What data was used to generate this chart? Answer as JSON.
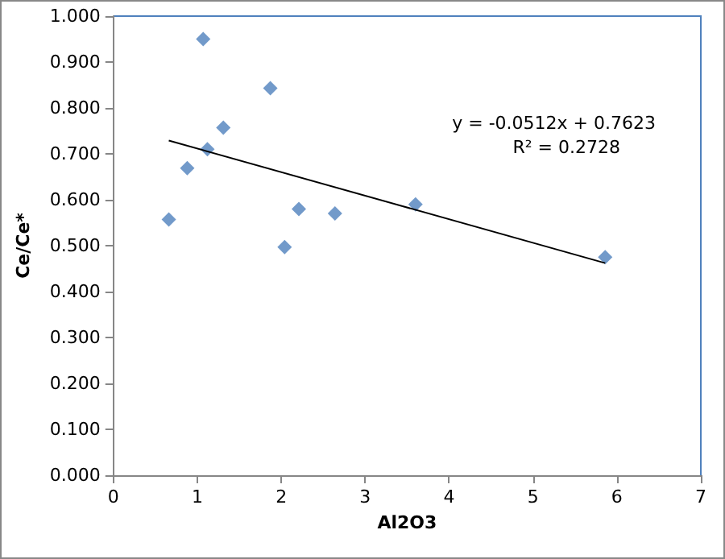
{
  "chart_data": {
    "type": "scatter",
    "xlabel": "Al2O3",
    "ylabel": "Ce/Ce*",
    "series": [
      {
        "color": "#4f81bd",
        "marker": "diamond",
        "x": [
          0.66,
          0.88,
          1.07,
          1.12,
          1.31,
          1.87,
          2.04,
          2.21,
          2.64,
          3.6,
          5.86
        ],
        "values": [
          0.557,
          0.669,
          0.95,
          0.71,
          0.757,
          0.843,
          0.497,
          0.58,
          0.57,
          0.59,
          0.475
        ]
      },
      {
        "type": "line",
        "color": "#000000",
        "marker": "none",
        "x": [
          0.66,
          5.86
        ],
        "values": [
          0.729,
          0.462
        ]
      }
    ],
    "annotations": [
      "y = -0.0512x + 0.7623",
      "R² = 0.2728"
    ],
    "xlim": [
      0,
      7
    ],
    "xticks": [
      0,
      1,
      2,
      3,
      4,
      5,
      6,
      7
    ],
    "ylim": [
      0,
      1
    ],
    "yticks": [
      {
        "value": 0,
        "label": "0.000"
      },
      {
        "value": 0.1,
        "label": "0.100"
      },
      {
        "value": 0.2,
        "label": "0.200"
      },
      {
        "value": 0.3,
        "label": "0.300"
      },
      {
        "value": 0.4,
        "label": "0.400"
      },
      {
        "value": 0.5,
        "label": "0.500"
      },
      {
        "value": 0.6,
        "label": "0.600"
      },
      {
        "value": 0.7,
        "label": "0.700"
      },
      {
        "value": 0.8,
        "label": "0.800"
      },
      {
        "value": 0.9,
        "label": "0.900"
      },
      {
        "value": 1,
        "label": "1.000"
      }
    ],
    "grid": false
  }
}
